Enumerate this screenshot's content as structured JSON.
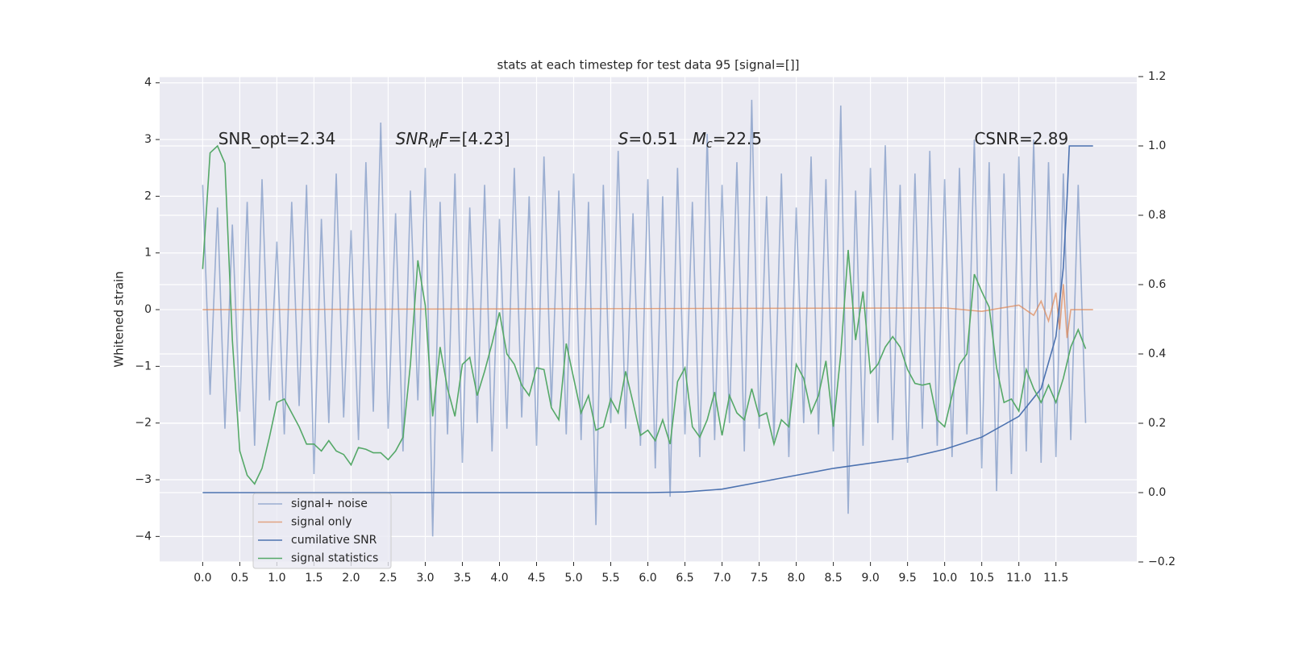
{
  "chart_data": {
    "type": "line",
    "title": "stats at each timestep for test data 95 [signal=[]]",
    "y_label": "Whitened strain",
    "xlim": [
      -0.58,
      12.59
    ],
    "ylim": [
      -4.45,
      4.11
    ],
    "y2lim": [
      -0.2,
      1.2
    ],
    "xticks": [
      {
        "value": 0,
        "label": "0.0"
      },
      0.5,
      {
        "value": 1,
        "label": "1.0"
      },
      1.5,
      {
        "value": 2,
        "label": "2.0"
      },
      2.5,
      {
        "value": 3,
        "label": "3.0"
      },
      3.5,
      {
        "value": 4,
        "label": "4.0"
      },
      4.5,
      {
        "value": 5,
        "label": "5.0"
      },
      5.5,
      {
        "value": 6,
        "label": "6.0"
      },
      6.5,
      {
        "value": 7,
        "label": "7.0"
      },
      7.5,
      {
        "value": 8,
        "label": "8.0"
      },
      8.5,
      {
        "value": 9,
        "label": "9.0"
      },
      9.5,
      {
        "value": 10,
        "label": "10.0"
      },
      10.5,
      {
        "value": 11,
        "label": "11.0"
      },
      11.5
    ],
    "yticks": [
      {
        "value": -4,
        "label": "−4"
      },
      {
        "value": -3,
        "label": "−3"
      },
      {
        "value": -2,
        "label": "−2"
      },
      {
        "value": -1,
        "label": "−1"
      },
      0,
      1,
      2,
      3,
      4
    ],
    "y2ticks": [
      {
        "value": -0.2,
        "label": "−0.2"
      },
      {
        "value": 0,
        "label": "0.0"
      },
      0.2,
      0.4,
      0.6,
      0.8,
      {
        "value": 1,
        "label": "1.0"
      },
      1.2
    ],
    "grid": true,
    "legend": "lower left",
    "series": [
      {
        "name": "signal+ noise",
        "color": "#4c72b0",
        "opacity": 0.5,
        "x": [
          0,
          0.1,
          0.2,
          0.3,
          0.4,
          0.5,
          0.6,
          0.7,
          0.8,
          0.9,
          1,
          1.1,
          1.2,
          1.3,
          1.4,
          1.5,
          1.6,
          1.7,
          1.8,
          1.9,
          2,
          2.1,
          2.2,
          2.3,
          2.4,
          2.5,
          2.6,
          2.7,
          2.8,
          2.9,
          3,
          3.1,
          3.2,
          3.3,
          3.4,
          3.5,
          3.6,
          3.7,
          3.8,
          3.9,
          4,
          4.1,
          4.2,
          4.3,
          4.4,
          4.5,
          4.6,
          4.7,
          4.8,
          4.9,
          5,
          5.1,
          5.2,
          5.3,
          5.4,
          5.5,
          5.6,
          5.7,
          5.8,
          5.9,
          6,
          6.1,
          6.2,
          6.3,
          6.4,
          6.5,
          6.6,
          6.7,
          6.8,
          6.9,
          7,
          7.1,
          7.2,
          7.3,
          7.4,
          7.5,
          7.6,
          7.7,
          7.8,
          7.9,
          8,
          8.1,
          8.2,
          8.3,
          8.4,
          8.5,
          8.6,
          8.7,
          8.8,
          8.9,
          9,
          9.1,
          9.2,
          9.3,
          9.4,
          9.5,
          9.6,
          9.7,
          9.8,
          9.9,
          10,
          10.1,
          10.2,
          10.3,
          10.4,
          10.5,
          10.6,
          10.7,
          10.8,
          10.9,
          11,
          11.1,
          11.2,
          11.3,
          11.4,
          11.5,
          11.6,
          11.7,
          11.8,
          11.9
        ],
        "values": [
          2.2,
          -1.5,
          1.8,
          -2.1,
          1.5,
          -1.8,
          1.9,
          -2.4,
          2.3,
          -1.6,
          1.2,
          -2.2,
          1.9,
          -1.7,
          2.2,
          -2.9,
          1.6,
          -2.0,
          2.4,
          -1.9,
          1.4,
          -2.3,
          2.6,
          -1.8,
          3.3,
          -2.1,
          1.7,
          -2.5,
          2.1,
          -1.6,
          2.5,
          -4.0,
          1.9,
          -2.2,
          2.4,
          -2.7,
          1.8,
          -2.0,
          2.2,
          -2.5,
          1.6,
          -2.1,
          2.5,
          -1.9,
          2.0,
          -2.4,
          2.7,
          -1.7,
          2.1,
          -2.2,
          2.4,
          -2.3,
          1.9,
          -3.8,
          2.2,
          -2.0,
          2.8,
          -2.1,
          1.7,
          -2.4,
          2.3,
          -2.8,
          2.0,
          -3.3,
          2.5,
          -2.2,
          1.9,
          -2.6,
          3.1,
          -2.3,
          2.2,
          -2.0,
          2.6,
          -2.5,
          3.7,
          -2.1,
          2.0,
          -2.3,
          2.4,
          -2.6,
          1.8,
          -2.0,
          2.7,
          -2.2,
          2.3,
          -2.5,
          3.6,
          -3.6,
          2.1,
          -2.4,
          2.5,
          -2.0,
          2.9,
          -2.3,
          2.2,
          -2.7,
          2.4,
          -2.1,
          2.8,
          -2.4,
          2.3,
          -2.6,
          2.5,
          -2.2,
          3.0,
          -2.8,
          2.6,
          -3.2,
          2.4,
          -2.9,
          2.7,
          -2.5,
          3.0,
          -2.7,
          2.6,
          -2.6,
          2.4,
          -2.3,
          2.2,
          -2.0
        ]
      },
      {
        "name": "signal only",
        "color": "#dd8452",
        "opacity": 0.7,
        "x": [
          0,
          10.0,
          10.5,
          11.0,
          11.2,
          11.3,
          11.4,
          11.5,
          11.55,
          11.6,
          11.65,
          11.7,
          12.0
        ],
        "values": [
          0,
          0.03,
          -0.03,
          0.08,
          -0.1,
          0.15,
          -0.2,
          0.3,
          -0.35,
          0.45,
          -0.5,
          0,
          0
        ]
      },
      {
        "name": "cumilative SNR",
        "color": "#4c72b0",
        "opacity": 1,
        "axis": "y2",
        "x": [
          0,
          6.0,
          6.5,
          7.0,
          7.5,
          8.0,
          8.5,
          9.0,
          9.5,
          10.0,
          10.5,
          11.0,
          11.3,
          11.5,
          11.6,
          11.65,
          11.68,
          12.0
        ],
        "values": [
          0,
          0,
          0.002,
          0.01,
          0.03,
          0.05,
          0.07,
          0.085,
          0.1,
          0.125,
          0.16,
          0.22,
          0.3,
          0.45,
          0.65,
          0.85,
          1.0,
          1.0
        ]
      },
      {
        "name": "signal statistics",
        "color": "#55a868",
        "opacity": 1,
        "axis": "y2",
        "x": [
          0,
          0.1,
          0.2,
          0.3,
          0.4,
          0.5,
          0.6,
          0.7,
          0.8,
          0.9,
          1,
          1.1,
          1.2,
          1.3,
          1.4,
          1.5,
          1.6,
          1.7,
          1.8,
          1.9,
          2,
          2.1,
          2.2,
          2.3,
          2.4,
          2.5,
          2.6,
          2.7,
          2.8,
          2.9,
          3,
          3.1,
          3.2,
          3.3,
          3.4,
          3.5,
          3.6,
          3.7,
          3.8,
          3.9,
          4,
          4.1,
          4.2,
          4.3,
          4.4,
          4.5,
          4.6,
          4.7,
          4.8,
          4.9,
          5,
          5.1,
          5.2,
          5.3,
          5.4,
          5.5,
          5.6,
          5.7,
          5.8,
          5.9,
          6,
          6.1,
          6.2,
          6.3,
          6.4,
          6.5,
          6.6,
          6.7,
          6.8,
          6.9,
          7,
          7.1,
          7.2,
          7.3,
          7.4,
          7.5,
          7.6,
          7.7,
          7.8,
          7.9,
          8,
          8.1,
          8.2,
          8.3,
          8.4,
          8.5,
          8.6,
          8.7,
          8.8,
          8.9,
          9,
          9.1,
          9.2,
          9.3,
          9.4,
          9.5,
          9.6,
          9.7,
          9.8,
          9.9,
          10,
          10.1,
          10.2,
          10.3,
          10.4,
          10.5,
          10.6,
          10.7,
          10.8,
          10.9,
          11,
          11.1,
          11.2,
          11.3,
          11.4,
          11.5,
          11.6,
          11.7,
          11.8,
          11.9
        ],
        "values": [
          0.645,
          0.98,
          1.0,
          0.95,
          0.44,
          0.12,
          0.05,
          0.025,
          0.07,
          0.16,
          0.26,
          0.27,
          0.23,
          0.19,
          0.14,
          0.14,
          0.12,
          0.15,
          0.12,
          0.11,
          0.08,
          0.13,
          0.125,
          0.115,
          0.115,
          0.095,
          0.12,
          0.16,
          0.37,
          0.67,
          0.54,
          0.22,
          0.42,
          0.3,
          0.22,
          0.37,
          0.39,
          0.28,
          0.35,
          0.43,
          0.52,
          0.4,
          0.37,
          0.31,
          0.28,
          0.36,
          0.355,
          0.245,
          0.21,
          0.43,
          0.33,
          0.23,
          0.28,
          0.18,
          0.19,
          0.27,
          0.23,
          0.35,
          0.26,
          0.165,
          0.18,
          0.15,
          0.21,
          0.14,
          0.32,
          0.36,
          0.19,
          0.16,
          0.21,
          0.29,
          0.165,
          0.28,
          0.23,
          0.21,
          0.3,
          0.22,
          0.23,
          0.14,
          0.21,
          0.19,
          0.37,
          0.33,
          0.23,
          0.28,
          0.38,
          0.19,
          0.4,
          0.7,
          0.44,
          0.58,
          0.345,
          0.37,
          0.42,
          0.45,
          0.42,
          0.355,
          0.315,
          0.31,
          0.315,
          0.21,
          0.19,
          0.28,
          0.37,
          0.4,
          0.63,
          0.58,
          0.535,
          0.36,
          0.26,
          0.27,
          0.235,
          0.355,
          0.3,
          0.26,
          0.31,
          0.26,
          0.33,
          0.42,
          0.47,
          0.415
        ]
      }
    ],
    "annotations": [
      {
        "x": 0.21,
        "y": 3,
        "parts": [
          {
            "text": "SNR_opt=2.34"
          }
        ]
      },
      {
        "x": 2.6,
        "y": 3,
        "parts": [
          {
            "text": "SNR",
            "style": "italic"
          },
          {
            "text": "M",
            "style": "italic-sub"
          },
          {
            "text": "F",
            "style": "italic"
          },
          {
            "text": "=[4.23]"
          }
        ]
      },
      {
        "x": 5.6,
        "y": 3,
        "parts": [
          {
            "text": "S",
            "style": "italic"
          },
          {
            "text": "=0.51"
          }
        ]
      },
      {
        "x": 6.6,
        "y": 3,
        "parts": [
          {
            "text": "M",
            "style": "italic"
          },
          {
            "text": "c",
            "style": "italic-sub"
          },
          {
            "text": "=22.5"
          }
        ]
      },
      {
        "x": 10.4,
        "y": 3,
        "parts": [
          {
            "text": "CSNR=2.89"
          }
        ]
      }
    ]
  }
}
